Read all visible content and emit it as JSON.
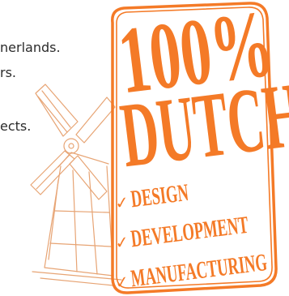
{
  "text_fragments": [
    "nerlands.",
    "rs.",
    "ects."
  ],
  "badge": {
    "headline_number": "100%",
    "headline_word": "DUTCH",
    "items": [
      "DESIGN",
      "DEVELOPMENT",
      "MANUFACTURING"
    ],
    "check_glyph": "✓",
    "color": "#f47a27"
  },
  "colors": {
    "accent": "#f47a27",
    "text": "#2b2b2b",
    "background": "#ffffff"
  }
}
